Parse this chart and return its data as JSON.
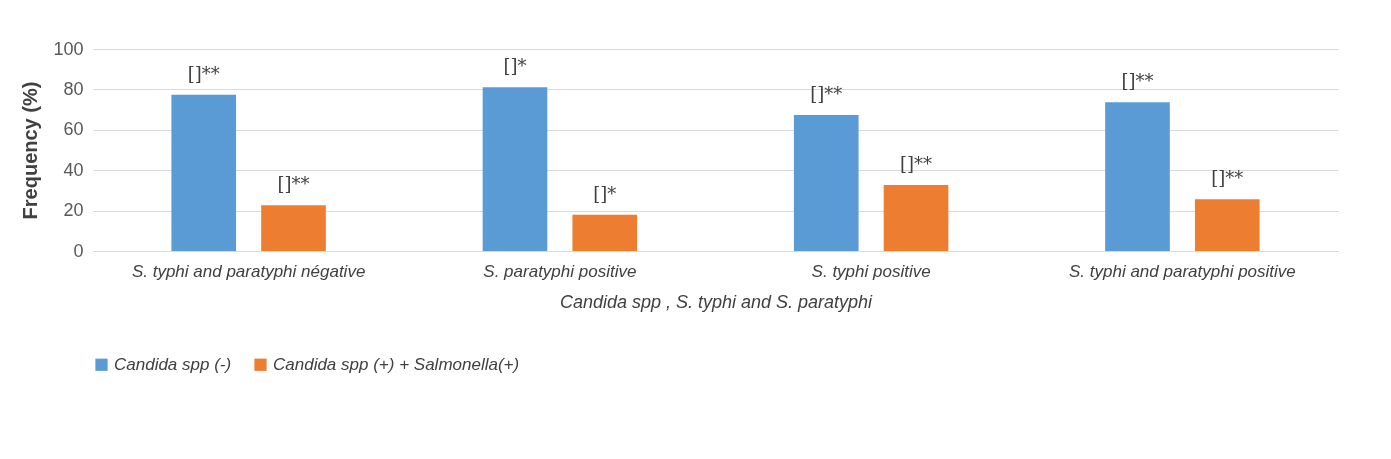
{
  "chart_data": {
    "type": "bar",
    "xlabel": "Candida spp , S. typhi and S. paratyphi",
    "ylabel": "Frequency (%)",
    "categories": [
      "S. typhi and paratyphi négative",
      "S. paratyphi positive",
      "S. typhi positive",
      "S. typhi and paratyphi positive"
    ],
    "series": [
      {
        "name": "Candida spp (-)",
        "color": "#5b9bd5",
        "values": [
          77.3,
          81.1,
          67.3,
          73.6
        ],
        "value_labels": [
          "[]**",
          "[]*",
          "[]**",
          "[]**"
        ]
      },
      {
        "name": "Candida spp (+) + Salmonella(+)",
        "color": "#ed7d31",
        "values": [
          22.7,
          18,
          32.7,
          25.6
        ],
        "value_labels": [
          "[]**",
          "[]*",
          "[]**",
          "[]**"
        ]
      }
    ],
    "ylim": [
      0,
      100
    ],
    "yticks": [
      0,
      20,
      40,
      60,
      80,
      100
    ],
    "grid": "y",
    "legend": "bottom"
  }
}
